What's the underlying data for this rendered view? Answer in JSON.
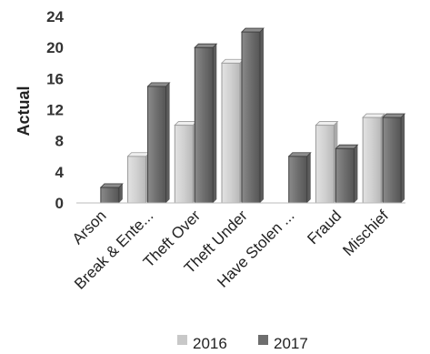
{
  "chart_data": {
    "type": "bar",
    "ylabel": "Actual",
    "ylim": [
      0,
      24
    ],
    "yticks": [
      "0",
      "4",
      "8",
      "12",
      "16",
      "20",
      "24"
    ],
    "grid": false,
    "legend_position": "bottom",
    "categories": [
      "Arson",
      "Break & Ente...",
      "Theft Over",
      "Theft Under",
      "Have Stolen ...",
      "Fraud",
      "Mischief"
    ],
    "series": [
      {
        "name": "2016",
        "values": [
          0,
          6,
          10,
          18,
          0,
          10,
          11
        ],
        "color": "#c8c8c8"
      },
      {
        "name": "2017",
        "values": [
          2,
          15,
          20,
          22,
          6,
          7,
          11
        ],
        "color": "#6e6e6e"
      }
    ]
  }
}
